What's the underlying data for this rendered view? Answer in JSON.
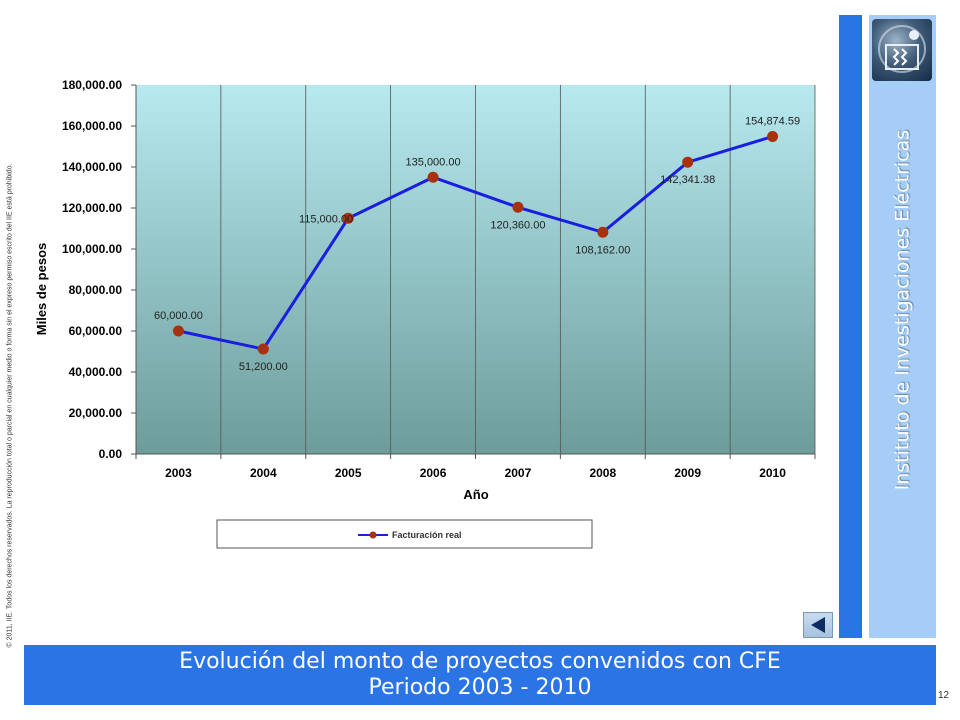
{
  "copyright": "© 2011, IIE. Todos los derechos reservados. La reproducción total o parcial en cualquier medio o forma sin el expreso permiso escrito del IIE está prohibido.",
  "side_banner": {
    "text": "Instituto de Investigaciones Eléctricas"
  },
  "slide": {
    "title_line1": "Evolución del monto de proyectos convenidos con CFE",
    "title_line2": "Periodo 2003 - 2010",
    "page_number": "12"
  },
  "colors": {
    "series_line": "#1a1ee0",
    "marker": "#a8310e",
    "plot_top": "#b7e9f0",
    "plot_bottom": "#6d9c9a",
    "accent_blue": "#2a74e6"
  },
  "icons": {
    "logo": "iie-logo-icon",
    "nav": "triangle-left-icon"
  },
  "chart_data": {
    "type": "line",
    "xlabel": "Año",
    "ylabel": "Miles de pesos",
    "ylim": [
      0,
      180000
    ],
    "yticks": [
      0,
      20000,
      40000,
      60000,
      80000,
      100000,
      120000,
      140000,
      160000,
      180000
    ],
    "ytick_labels": [
      "0.00",
      "20,000.00",
      "40,000.00",
      "60,000.00",
      "80,000.00",
      "100,000.00",
      "120,000.00",
      "140,000.00",
      "160,000.00",
      "180,000.00"
    ],
    "categories": [
      "2003",
      "2004",
      "2005",
      "2006",
      "2007",
      "2008",
      "2009",
      "2010"
    ],
    "grid": "vertical",
    "legend_position": "bottom",
    "series": [
      {
        "name": "Facturación real",
        "values": [
          60000,
          51200,
          115000,
          135000,
          120360,
          108162,
          142341.38,
          154874.59
        ],
        "labels": [
          "60,000.00",
          "51,200.00",
          "115,000.00",
          "135,000.00",
          "120,360.00",
          "108,162.00",
          "142,341.38",
          "154,874.59"
        ]
      }
    ]
  }
}
